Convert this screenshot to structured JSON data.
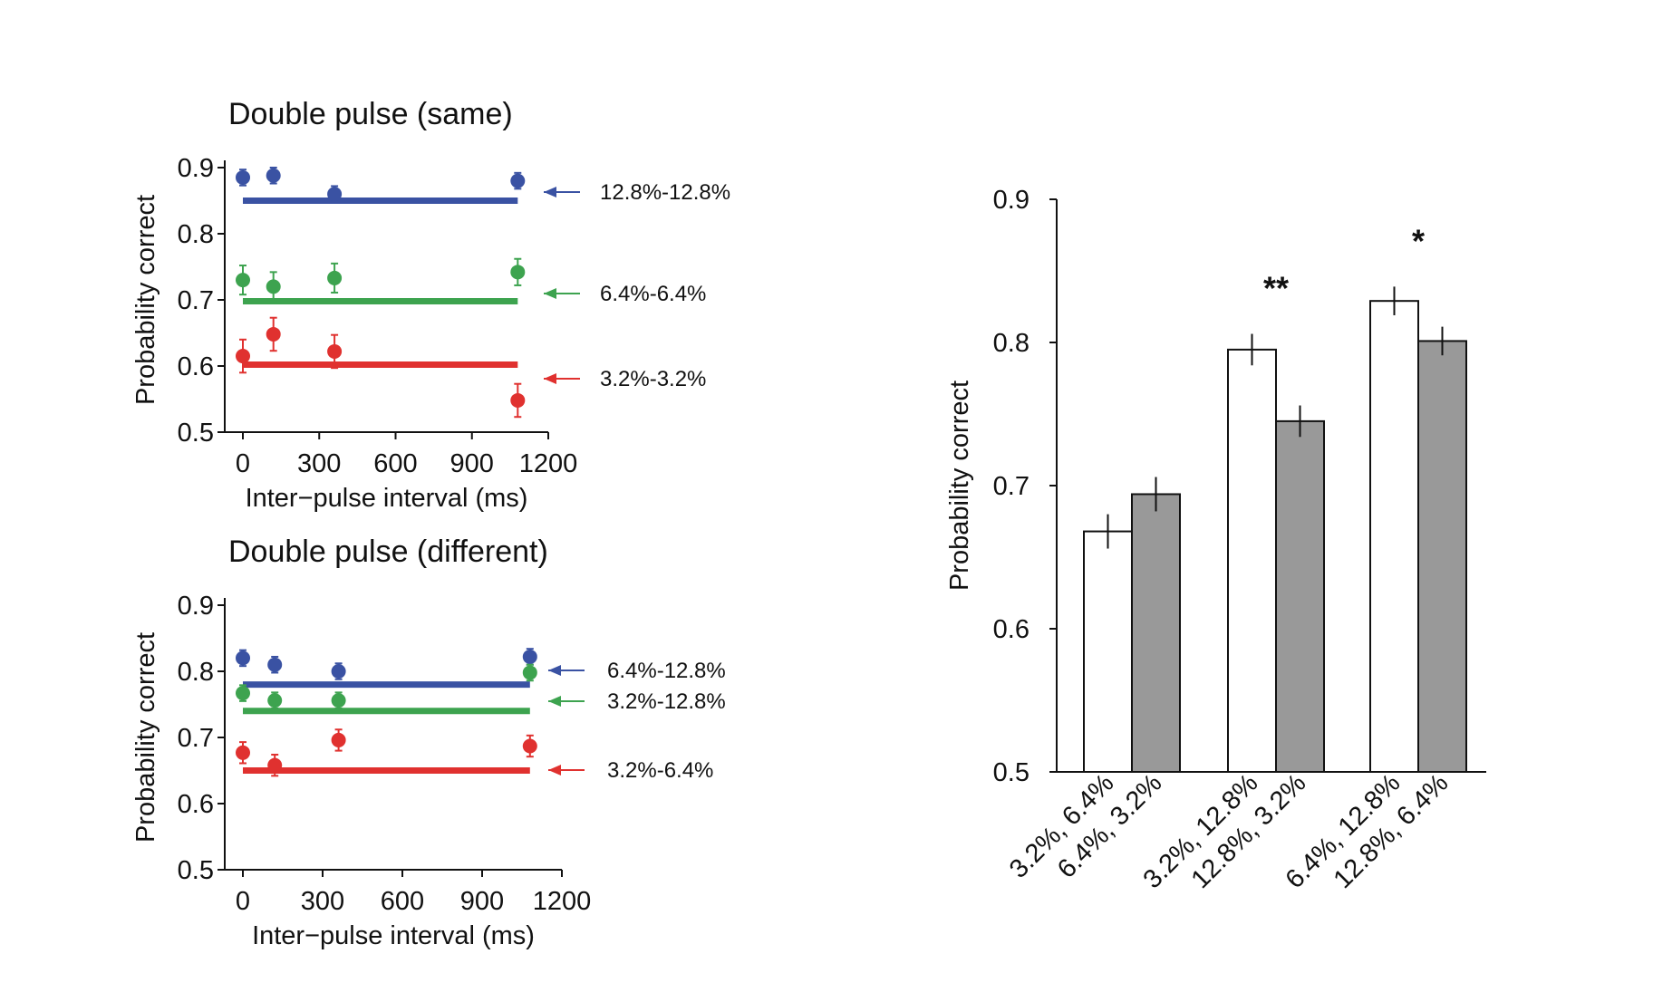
{
  "chart_data": [
    {
      "type": "scatter",
      "title": "Double pulse (same)",
      "xlabel": "Inter−pulse interval (ms)",
      "ylabel": "Probability correct",
      "xlim": [
        0,
        1200
      ],
      "ylim": [
        0.5,
        0.9
      ],
      "xticks": [
        "0",
        "300",
        "600",
        "900",
        "1200"
      ],
      "yticks": [
        "0.5",
        "0.6",
        "0.7",
        "0.8",
        "0.9"
      ],
      "series": [
        {
          "name": "12.8%-12.8%",
          "color": "#3a52a3",
          "x": [
            0,
            120,
            360,
            1080
          ],
          "y": [
            0.885,
            0.888,
            0.86,
            0.88
          ],
          "err": [
            0.012,
            0.012,
            0.012,
            0.012
          ],
          "line": 0.85
        },
        {
          "name": "6.4%-6.4%",
          "color": "#3da34f",
          "x": [
            0,
            120,
            360,
            1080
          ],
          "y": [
            0.73,
            0.72,
            0.733,
            0.742
          ],
          "err": [
            0.022,
            0.022,
            0.022,
            0.02
          ],
          "line": 0.698
        },
        {
          "name": "3.2%-3.2%",
          "color": "#e0312f",
          "x": [
            0,
            120,
            360,
            1080
          ],
          "y": [
            0.615,
            0.648,
            0.622,
            0.548
          ],
          "err": [
            0.025,
            0.025,
            0.025,
            0.025
          ],
          "line": 0.602
        }
      ]
    },
    {
      "type": "scatter",
      "title": "Double pulse (different)",
      "xlabel": "Inter−pulse interval (ms)",
      "ylabel": "Probability correct",
      "xlim": [
        0,
        1200
      ],
      "ylim": [
        0.5,
        0.9
      ],
      "xticks": [
        "0",
        "300",
        "600",
        "900",
        "1200"
      ],
      "yticks": [
        "0.5",
        "0.6",
        "0.7",
        "0.8",
        "0.9"
      ],
      "series": [
        {
          "name": "6.4%-12.8%",
          "color": "#3a52a3",
          "x": [
            0,
            120,
            360,
            1080
          ],
          "y": [
            0.82,
            0.81,
            0.8,
            0.822
          ],
          "err": [
            0.012,
            0.012,
            0.012,
            0.012
          ],
          "line": 0.78
        },
        {
          "name": "3.2%-12.8%",
          "color": "#3da34f",
          "x": [
            0,
            120,
            360,
            1080
          ],
          "y": [
            0.767,
            0.756,
            0.756,
            0.798
          ],
          "err": [
            0.012,
            0.012,
            0.012,
            0.012
          ],
          "line": 0.74
        },
        {
          "name": "3.2%-6.4%",
          "color": "#e0312f",
          "x": [
            0,
            120,
            360,
            1080
          ],
          "y": [
            0.677,
            0.658,
            0.696,
            0.687
          ],
          "err": [
            0.016,
            0.016,
            0.016,
            0.016
          ],
          "line": 0.65
        }
      ]
    },
    {
      "type": "bar",
      "ylabel": "Probability correct",
      "ylim": [
        0.5,
        0.9
      ],
      "yticks": [
        "0.5",
        "0.6",
        "0.7",
        "0.8",
        "0.9"
      ],
      "categories": [
        "3.2%, 6.4%",
        "6.4%, 3.2%",
        "3.2%, 12.8%",
        "12.8%, 3.2%",
        "6.4%, 12.8%",
        "12.8%, 6.4%"
      ],
      "values": [
        0.668,
        0.694,
        0.795,
        0.745,
        0.829,
        0.801
      ],
      "errors": [
        0.012,
        0.012,
        0.011,
        0.011,
        0.01,
        0.01
      ],
      "fills": [
        "#ffffff",
        "#999999",
        "#ffffff",
        "#999999",
        "#ffffff",
        "#999999"
      ],
      "annotations": [
        {
          "text": "**",
          "pair": [
            2,
            3
          ]
        },
        {
          "text": "*",
          "pair": [
            4,
            5
          ]
        }
      ]
    }
  ]
}
